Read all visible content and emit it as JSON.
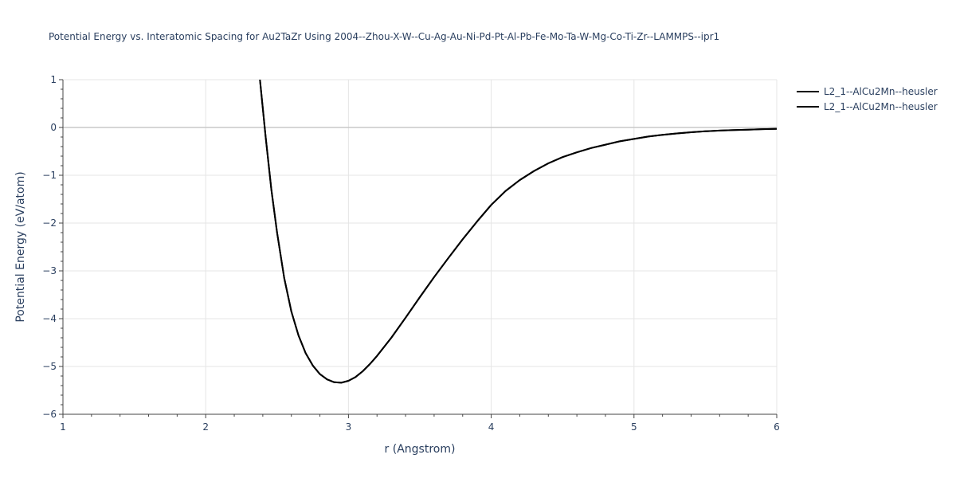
{
  "chart_data": {
    "type": "line",
    "title": "Potential Energy vs. Interatomic Spacing for Au2TaZr Using 2004--Zhou-X-W--Cu-Ag-Au-Ni-Pd-Pt-Al-Pb-Fe-Mo-Ta-W-Mg-Co-Ti-Zr--LAMMPS--ipr1",
    "xlabel": "r (Angstrom)",
    "ylabel": "Potential Energy (eV/atom)",
    "xlim": [
      1,
      6
    ],
    "ylim": [
      -6,
      1
    ],
    "x_ticks": [
      1,
      2,
      3,
      4,
      5,
      6
    ],
    "y_ticks": [
      1,
      0,
      -1,
      -2,
      -3,
      -4,
      -5,
      -6
    ],
    "x_tick_labels": [
      "1",
      "2",
      "3",
      "4",
      "5",
      "6"
    ],
    "y_tick_labels": [
      "1",
      "0",
      "−1",
      "−2",
      "−3",
      "−4",
      "−5",
      "−6"
    ],
    "grid": true,
    "legend_position": "top-right",
    "line_color": "#000000",
    "series": [
      {
        "name": "L2_1--AlCu2Mn--heusler",
        "x": [
          2.38,
          2.42,
          2.46,
          2.5,
          2.55,
          2.6,
          2.65,
          2.7,
          2.75,
          2.8,
          2.85,
          2.9,
          2.95,
          3.0,
          3.05,
          3.1,
          3.15,
          3.2,
          3.3,
          3.4,
          3.5,
          3.6,
          3.7,
          3.8,
          3.9,
          4.0,
          4.1,
          4.2,
          4.3,
          4.4,
          4.5,
          4.6,
          4.7,
          4.8,
          4.9,
          5.0,
          5.1,
          5.2,
          5.3,
          5.4,
          5.5,
          5.6,
          5.7,
          5.8,
          5.9,
          6.0
        ],
        "y": [
          1.0,
          -0.2,
          -1.3,
          -2.2,
          -3.15,
          -3.85,
          -4.35,
          -4.72,
          -4.98,
          -5.16,
          -5.27,
          -5.33,
          -5.34,
          -5.3,
          -5.22,
          -5.1,
          -4.95,
          -4.78,
          -4.4,
          -3.98,
          -3.55,
          -3.13,
          -2.73,
          -2.34,
          -1.97,
          -1.62,
          -1.33,
          -1.1,
          -0.91,
          -0.75,
          -0.62,
          -0.52,
          -0.43,
          -0.36,
          -0.29,
          -0.24,
          -0.19,
          -0.155,
          -0.125,
          -0.1,
          -0.08,
          -0.065,
          -0.055,
          -0.045,
          -0.035,
          -0.03
        ]
      },
      {
        "name": "L2_1--AlCu2Mn--heusler",
        "x": [
          2.38,
          2.42,
          2.46,
          2.5,
          2.55,
          2.6,
          2.65,
          2.7,
          2.75,
          2.8,
          2.85,
          2.9,
          2.95,
          3.0,
          3.05,
          3.1,
          3.15,
          3.2,
          3.3,
          3.4,
          3.5,
          3.6,
          3.7,
          3.8,
          3.9,
          4.0,
          4.1,
          4.2,
          4.3,
          4.4,
          4.5,
          4.6,
          4.7,
          4.8,
          4.9,
          5.0,
          5.1,
          5.2,
          5.3,
          5.4,
          5.5,
          5.6,
          5.7,
          5.8,
          5.9,
          6.0
        ],
        "y": [
          1.0,
          -0.2,
          -1.3,
          -2.2,
          -3.15,
          -3.85,
          -4.35,
          -4.72,
          -4.98,
          -5.16,
          -5.27,
          -5.33,
          -5.34,
          -5.3,
          -5.22,
          -5.1,
          -4.95,
          -4.78,
          -4.4,
          -3.98,
          -3.55,
          -3.13,
          -2.73,
          -2.34,
          -1.97,
          -1.62,
          -1.33,
          -1.1,
          -0.91,
          -0.75,
          -0.62,
          -0.52,
          -0.43,
          -0.36,
          -0.29,
          -0.24,
          -0.19,
          -0.155,
          -0.125,
          -0.1,
          -0.08,
          -0.065,
          -0.055,
          -0.045,
          -0.035,
          -0.03
        ]
      }
    ]
  }
}
